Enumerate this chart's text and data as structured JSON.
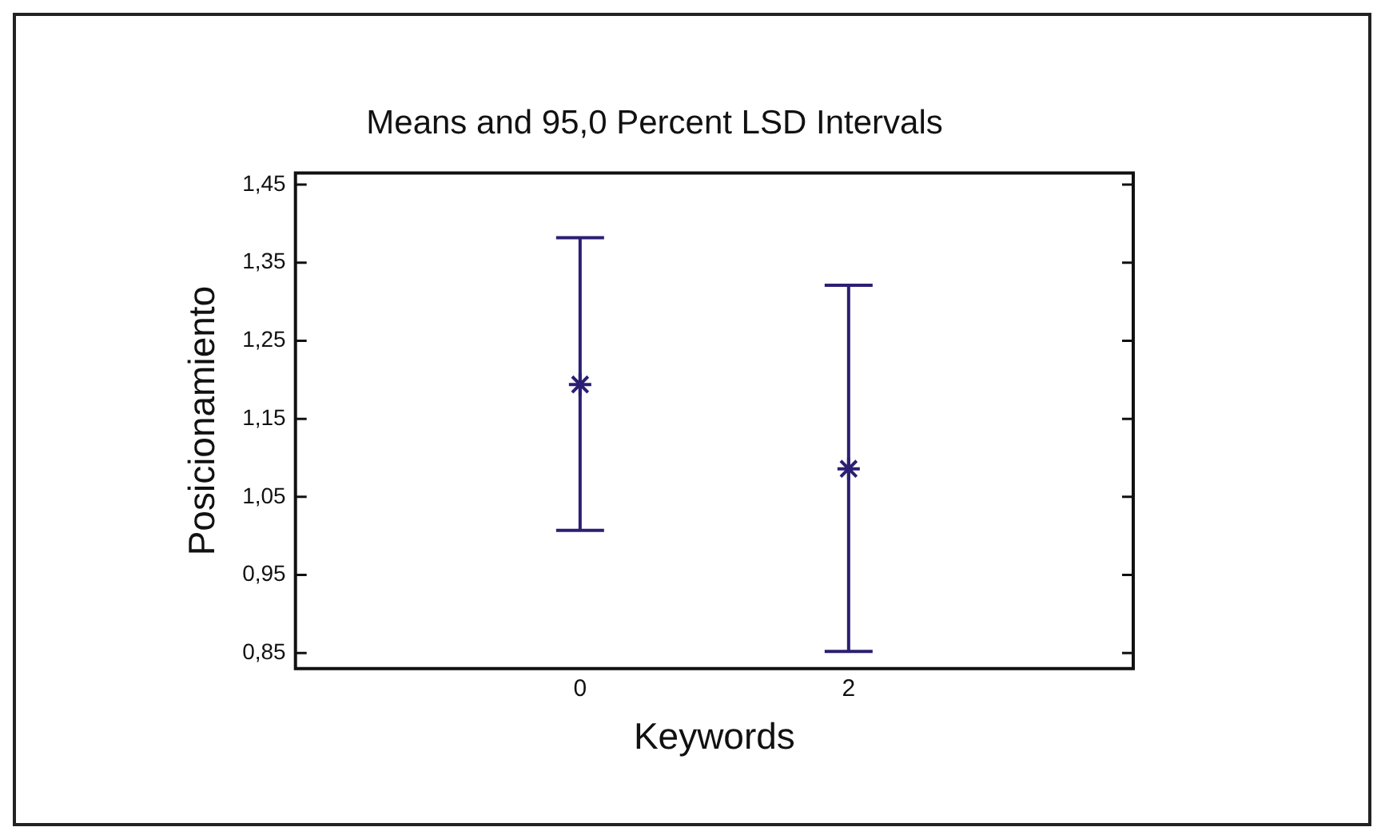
{
  "chart_data": {
    "type": "scatter",
    "title": "Means and 95,0 Percent LSD Intervals",
    "xlabel": "Keywords",
    "ylabel": "Posicionamiento",
    "categories": [
      "0",
      "2"
    ],
    "series": [
      {
        "color": "#2b1f73",
        "values": [
          1.194,
          1.086
        ],
        "errors": [
          [
            1.007,
            1.382
          ],
          [
            0.852,
            1.321
          ]
        ]
      }
    ],
    "ylim": [
      0.83,
      1.465
    ],
    "yticks": [
      {
        "value": 0.85,
        "label": "0,85"
      },
      {
        "value": 0.95,
        "label": "0,95"
      },
      {
        "value": 1.05,
        "label": "1,05"
      },
      {
        "value": 1.15,
        "label": "1,15"
      },
      {
        "value": 1.25,
        "label": "1,25"
      },
      {
        "value": 1.35,
        "label": "1,35"
      },
      {
        "value": 1.45,
        "label": "1,45"
      }
    ],
    "marker": "cross",
    "grid": false,
    "legend": false
  }
}
